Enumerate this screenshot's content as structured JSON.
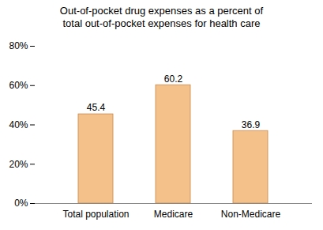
{
  "chart_data": {
    "type": "bar",
    "title": "Out-of-pocket drug expenses as a percent of\ntotal out-of-pocket expenses for health care",
    "categories": [
      "Total population",
      "Medicare",
      "Non-Medicare"
    ],
    "values": [
      45.4,
      60.2,
      36.9
    ],
    "color": "#F5C18A",
    "ylim": [
      0,
      80
    ],
    "yticks": [
      {
        "value": 0,
        "label": "0%"
      },
      {
        "value": 20,
        "label": "20%"
      },
      {
        "value": 40,
        "label": "40%"
      },
      {
        "value": 60,
        "label": "60%"
      },
      {
        "value": 80,
        "label": "80%"
      }
    ],
    "grid": false,
    "data_labels": true
  }
}
